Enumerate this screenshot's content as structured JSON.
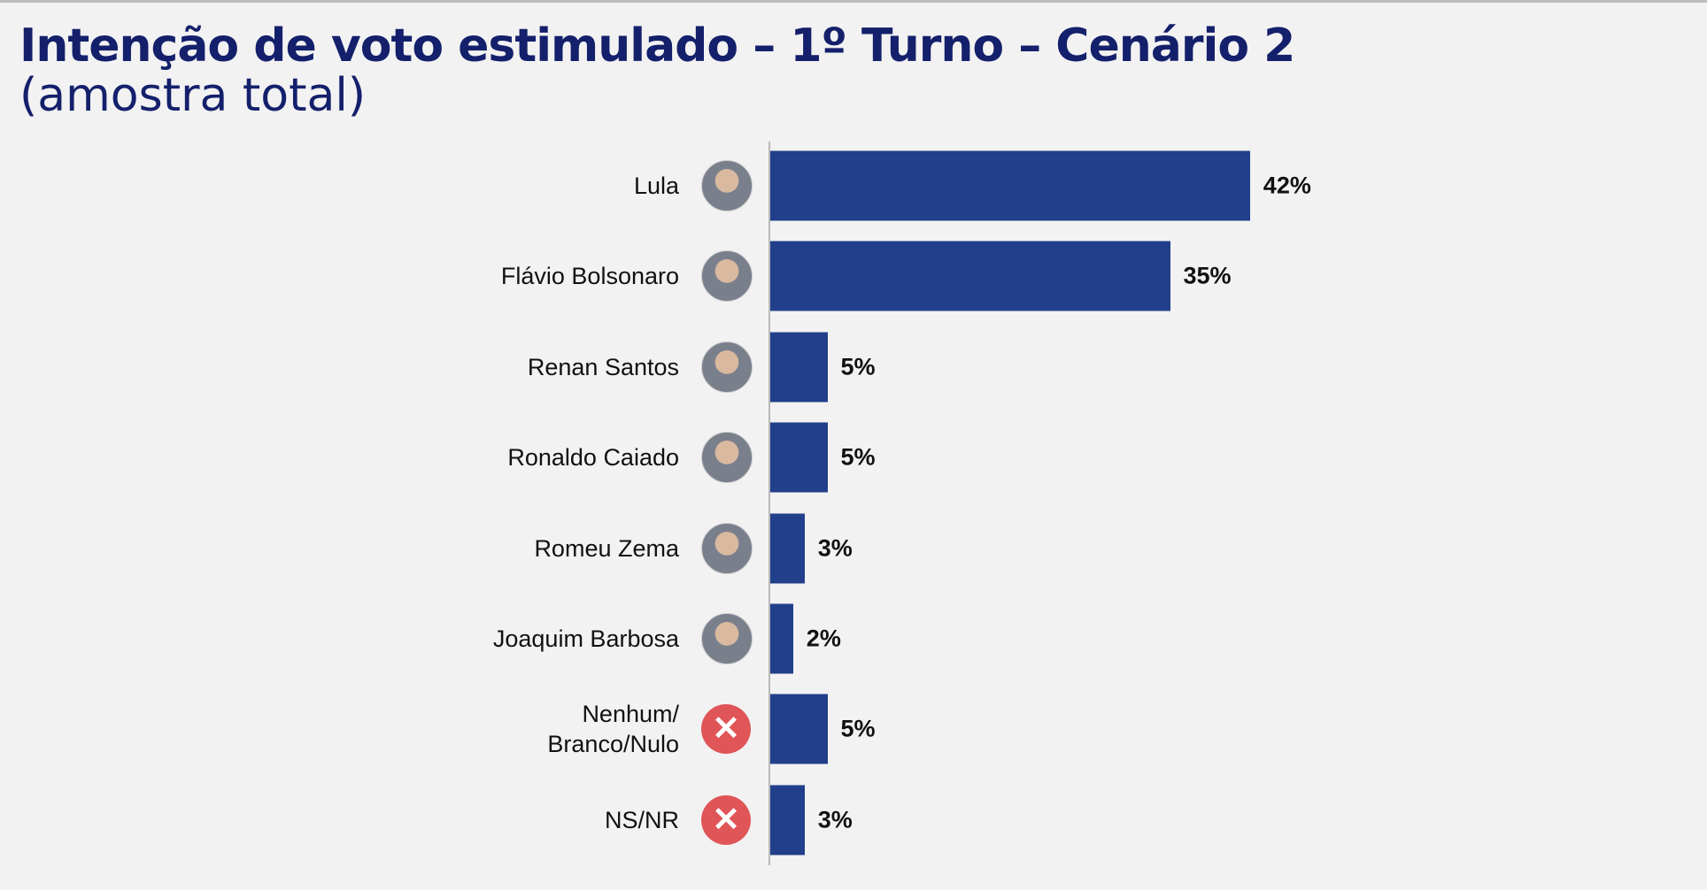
{
  "chart_data": {
    "type": "bar",
    "orientation": "horizontal",
    "title": "Intenção de voto estimulado – 1º Turno – Cenário 2",
    "subtitle": "(amostra total)",
    "categories": [
      "Lula",
      "Flávio Bolsonaro",
      "Renan Santos",
      "Ronaldo Caiado",
      "Romeu Zema",
      "Joaquim Barbosa",
      "Nenhum/\nBranco/Nulo",
      "NS/NR"
    ],
    "values": [
      42,
      35,
      5,
      5,
      3,
      2,
      5,
      3
    ],
    "value_labels": [
      "42%",
      "35%",
      "5%",
      "5%",
      "3%",
      "2%",
      "5%",
      "3%"
    ],
    "color": "#213f8a"
  }
}
